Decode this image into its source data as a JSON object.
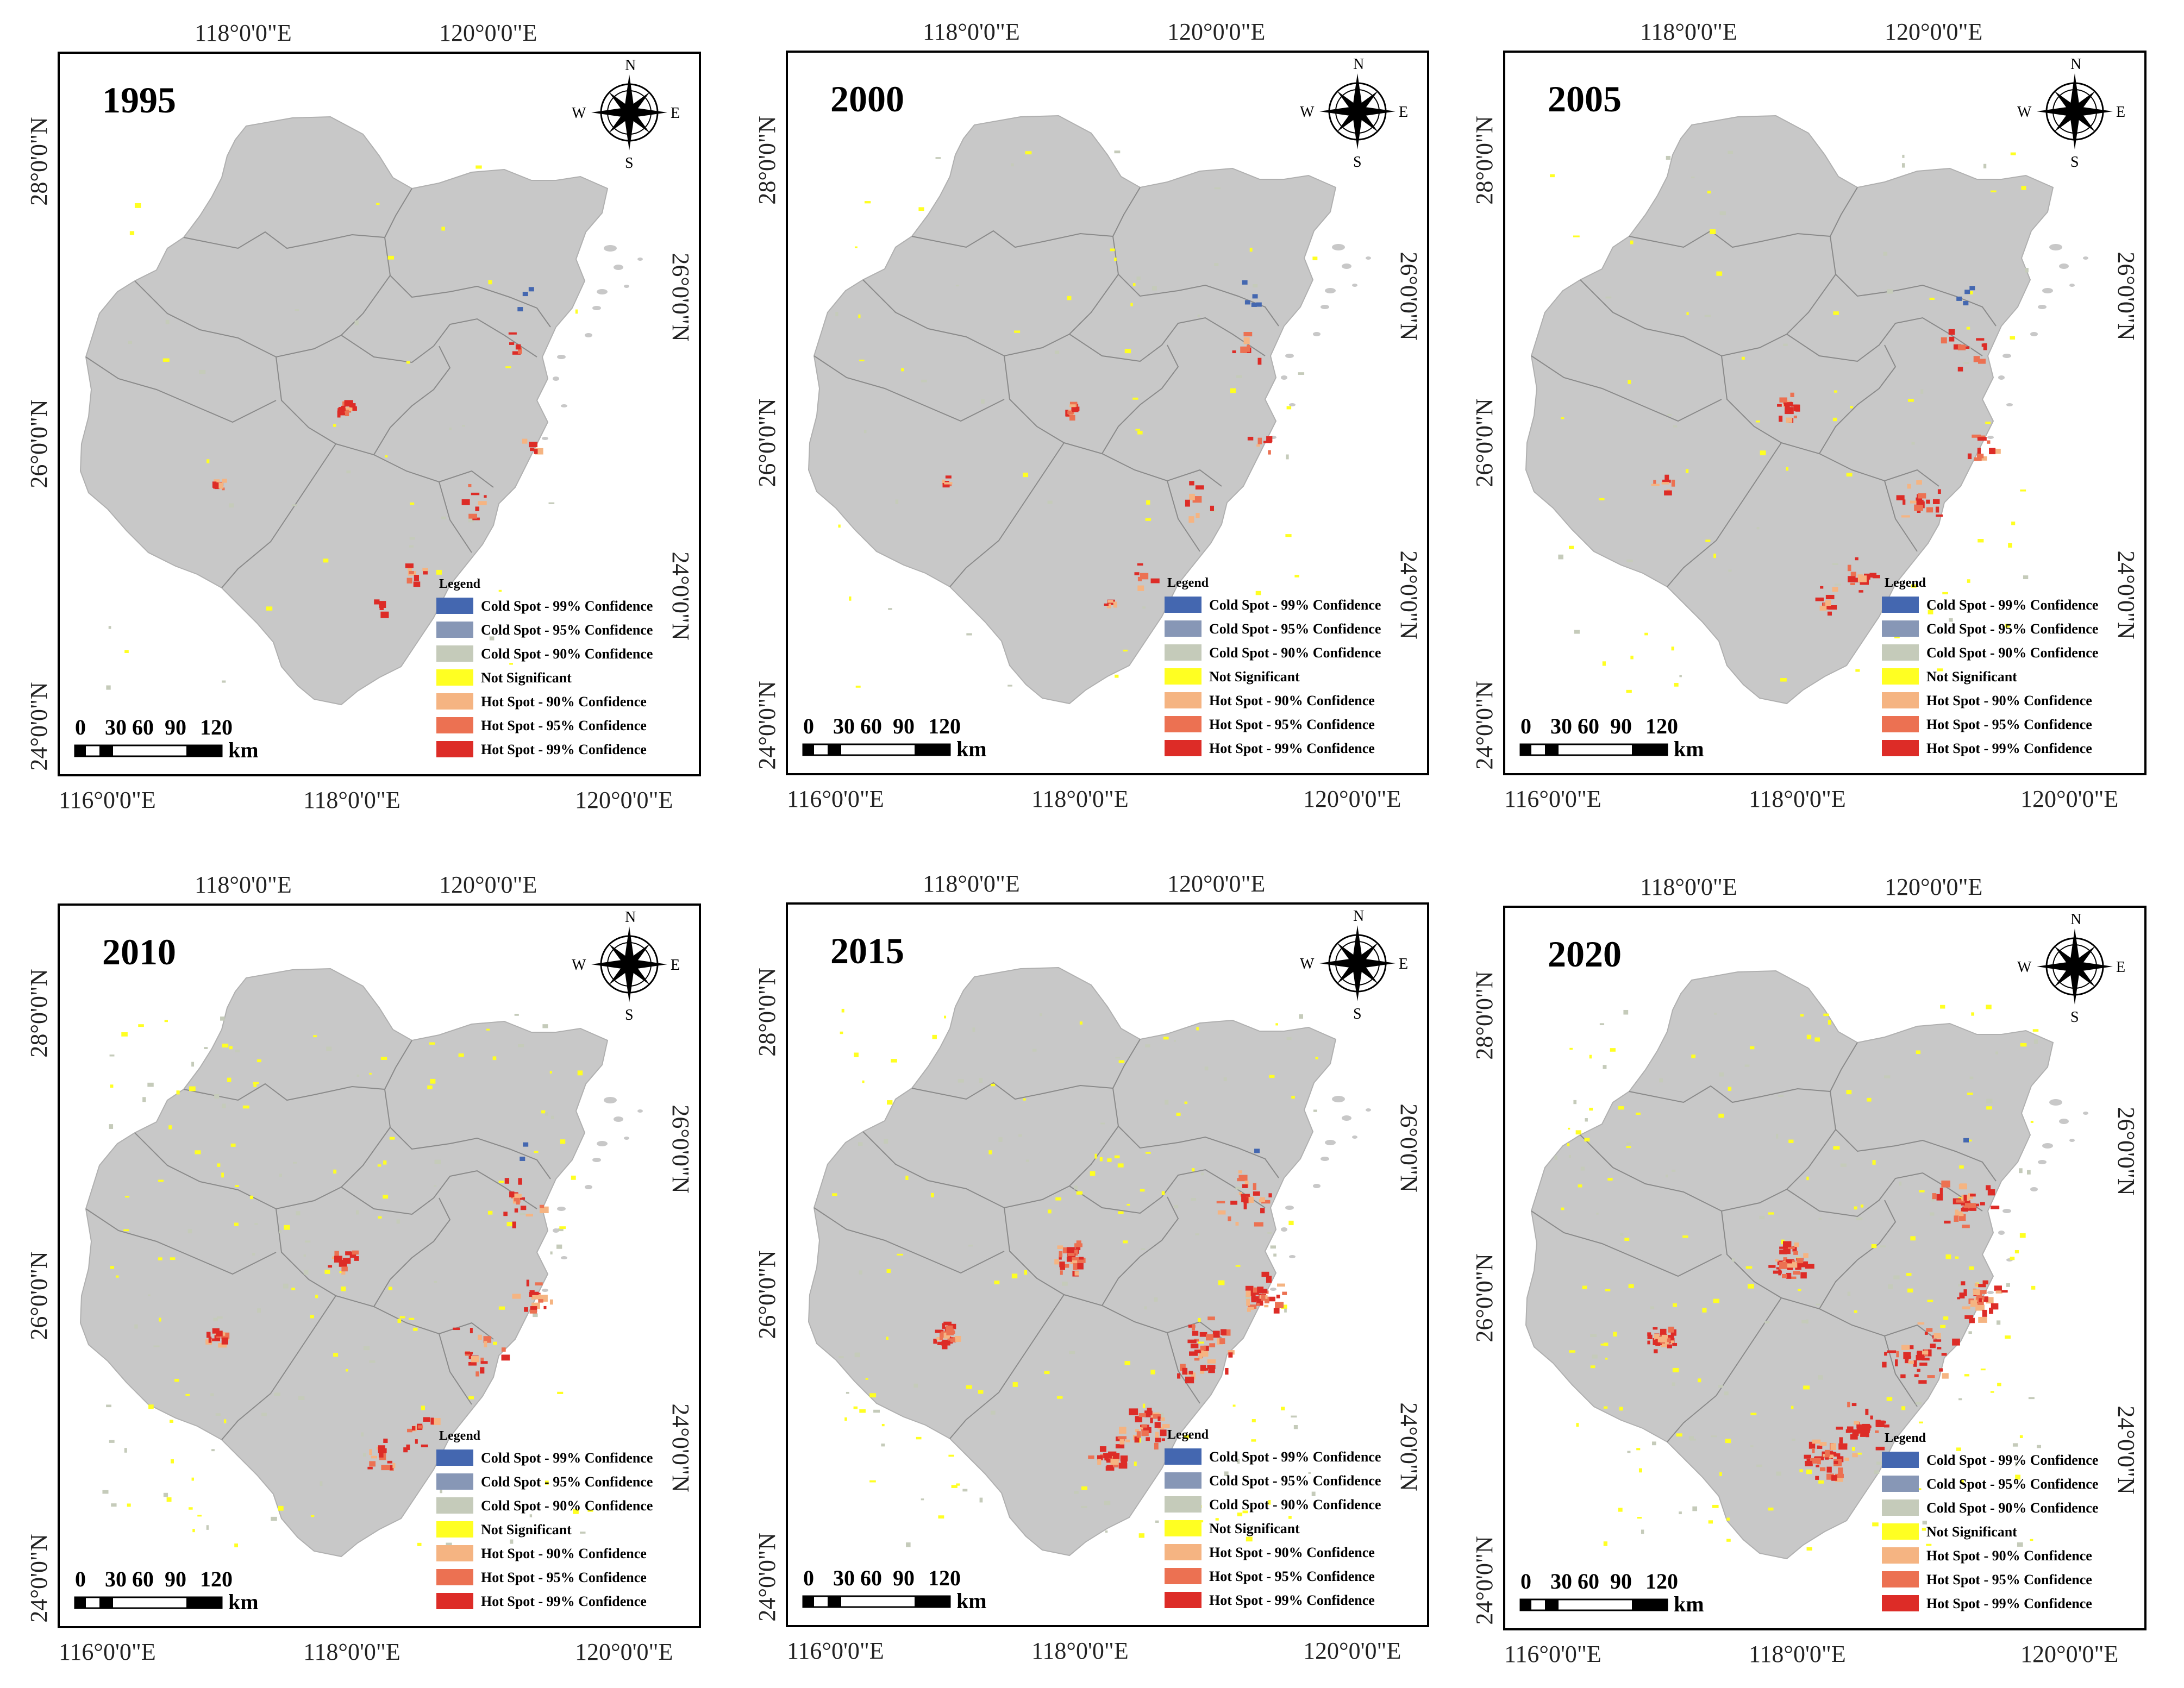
{
  "figure": {
    "panels": [
      {
        "year": "1995"
      },
      {
        "year": "2000"
      },
      {
        "year": "2005"
      },
      {
        "year": "2010"
      },
      {
        "year": "2015"
      },
      {
        "year": "2020"
      }
    ],
    "axes": {
      "top_ticks": [
        "118°0'0\"E",
        "120°0'0\"E"
      ],
      "bottom_ticks": [
        "116°0'0\"E",
        "118°0'0\"E",
        "120°0'0\"E"
      ],
      "left_ticks": [
        "28°0'0\"N",
        "26°0'0\"N",
        "24°0'0\"N"
      ],
      "right_ticks": [
        "26°0'0\"N",
        "24°0'0\"N"
      ]
    },
    "compass": {
      "n": "N",
      "s": "S",
      "e": "E",
      "w": "W"
    },
    "scale_bar": {
      "labels": [
        "0",
        "30",
        "60",
        "90",
        "120"
      ],
      "unit": "km"
    },
    "legend": {
      "title": "Legend",
      "items": [
        {
          "label": "Cold Spot - 99% Confidence",
          "color": "#4467b0"
        },
        {
          "label": "Cold Spot - 95% Confidence",
          "color": "#8797b6"
        },
        {
          "label": "Cold Spot - 90% Confidence",
          "color": "#c5cbba"
        },
        {
          "label": "Not Significant",
          "color": "#ffff22"
        },
        {
          "label": "Hot Spot - 90% Confidence",
          "color": "#f5b482"
        },
        {
          "label": "Hot Spot - 95% Confidence",
          "color": "#ec7152"
        },
        {
          "label": "Hot Spot - 99% Confidence",
          "color": "#dd2c27"
        }
      ]
    },
    "colors": {
      "land": "#c8c8c8",
      "boundary": "#8a8a8a",
      "frame": "#000000"
    }
  }
}
